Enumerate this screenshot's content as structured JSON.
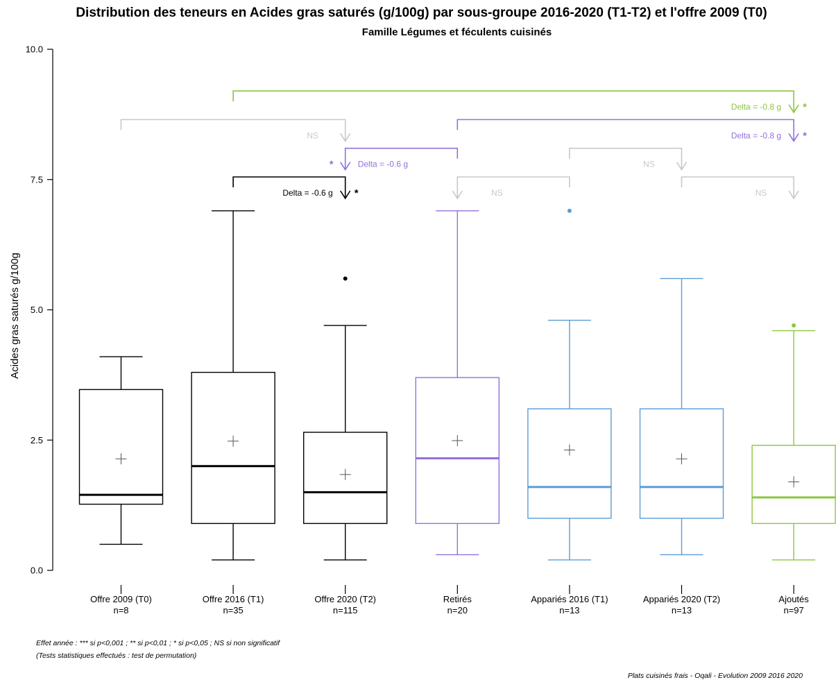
{
  "chart_data": {
    "type": "box",
    "title": "Distribution des teneurs en Acides gras saturés (g/100g) par sous-groupe 2016-2020 (T1-T2) et l'offre 2009 (T0)",
    "subtitle": "Famille Légumes et féculents cuisinés",
    "ylabel": "Acides gras saturés g/100g",
    "ylim": [
      0,
      10
    ],
    "yticks": [
      "0.0",
      "2.5",
      "5.0",
      "7.5",
      "10.0"
    ],
    "groups": [
      {
        "label": "Offre 2009 (T0)",
        "n_label": "n=8",
        "color": "#000000",
        "min": 0.5,
        "q1": 1.27,
        "median": 1.45,
        "q3": 3.47,
        "max": 4.1,
        "mean": 2.14,
        "outliers": []
      },
      {
        "label": "Offre 2016 (T1)",
        "n_label": "n=35",
        "color": "#000000",
        "min": 0.2,
        "q1": 0.9,
        "median": 2.0,
        "q3": 3.8,
        "max": 6.9,
        "mean": 2.48,
        "outliers": []
      },
      {
        "label": "Offre 2020 (T2)",
        "n_label": "n=115",
        "color": "#000000",
        "min": 0.2,
        "q1": 0.9,
        "median": 1.5,
        "q3": 2.65,
        "max": 4.7,
        "mean": 1.84,
        "outliers": [
          5.6
        ]
      },
      {
        "label": "Retirés",
        "n_label": "n=20",
        "color": "#9370DB",
        "min": 0.3,
        "q1": 0.9,
        "median": 2.15,
        "q3": 3.7,
        "max": 6.9,
        "mean": 2.49,
        "outliers": []
      },
      {
        "label": "Appariés 2016 (T1)",
        "n_label": "n=13",
        "color": "#5B9BD5",
        "min": 0.2,
        "q1": 1.0,
        "median": 1.6,
        "q3": 3.1,
        "max": 4.8,
        "mean": 2.31,
        "outliers": [
          6.9
        ]
      },
      {
        "label": "Appariés 2020 (T2)",
        "n_label": "n=13",
        "color": "#5B9BD5",
        "min": 0.3,
        "q1": 1.0,
        "median": 1.6,
        "q3": 3.1,
        "max": 5.6,
        "mean": 2.14,
        "outliers": []
      },
      {
        "label": "Ajoutés",
        "n_label": "n=97",
        "color": "#8CC63F",
        "min": 0.2,
        "q1": 0.9,
        "median": 1.4,
        "q3": 2.4,
        "max": 4.6,
        "mean": 1.7,
        "outliers": [
          4.7
        ]
      }
    ],
    "comparisons": [
      {
        "from": 1,
        "to": 2,
        "y": 7.55,
        "color": "#000000",
        "label": "Delta = -0.6 g",
        "label_side": "left",
        "sig": "*",
        "sig_side": "right"
      },
      {
        "from": 3,
        "to": 2,
        "y": 8.1,
        "color": "#9370DB",
        "label": "Delta = -0.6 g",
        "label_side": "right",
        "sig": "*",
        "sig_side": "left"
      },
      {
        "from": 0,
        "to": 2,
        "y": 8.65,
        "color": "#C8C8C8",
        "label": "NS",
        "label_side": "left",
        "sig": "",
        "sig_side": "right"
      },
      {
        "from": 4,
        "to": 3,
        "y": 7.55,
        "color": "#C8C8C8",
        "label": "NS",
        "label_side": "right",
        "sig": "",
        "sig_side": "right"
      },
      {
        "from": 4,
        "to": 5,
        "y": 8.1,
        "color": "#C8C8C8",
        "label": "NS",
        "label_side": "left",
        "sig": "",
        "sig_side": "right"
      },
      {
        "from": 5,
        "to": 6,
        "y": 7.55,
        "color": "#C8C8C8",
        "label": "NS",
        "label_side": "left",
        "sig": "",
        "sig_side": "right"
      },
      {
        "from": 3,
        "to": 6,
        "y": 8.65,
        "color": "#9370DB",
        "label": "Delta = -0.8 g",
        "label_side": "left",
        "sig": "*",
        "sig_side": "right"
      },
      {
        "from": 1,
        "to": 6,
        "y": 9.2,
        "color": "#8CC63F",
        "label": "Delta = -0.8 g",
        "label_side": "left",
        "sig": "*",
        "sig_side": "right"
      }
    ]
  },
  "footnotes": {
    "line1": "Effet année : *** si p<0,001 ; ** si p<0,01 ; * si p<0,05 ; NS si non significatif",
    "line2": "(Tests statistiques effectués : test de permutation)",
    "source": "Plats cuisinés frais - Oqali - Evolution 2009 2016 2020"
  }
}
